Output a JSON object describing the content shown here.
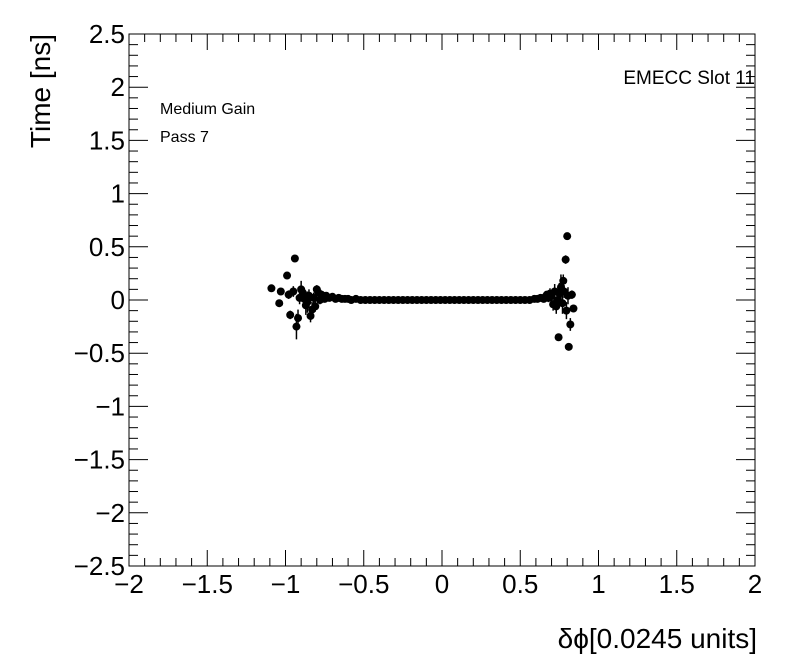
{
  "chart_data": {
    "type": "scatter",
    "title": "",
    "xlabel": "δϕ[0.0245 units]",
    "ylabel": "Time [ns]",
    "xlim": [
      -2,
      2
    ],
    "ylim": [
      -2.5,
      2.5
    ],
    "x_ticks": [
      -2,
      -1.5,
      -1,
      -0.5,
      0,
      0.5,
      1,
      1.5,
      2
    ],
    "x_tick_labels": [
      "−2",
      "−1.5",
      "−1",
      "−0.5",
      "0",
      "0.5",
      "1",
      "1.5",
      "2"
    ],
    "y_ticks": [
      -2.5,
      -2,
      -1.5,
      -1,
      -0.5,
      0,
      0.5,
      1,
      1.5,
      2,
      2.5
    ],
    "y_tick_labels": [
      "−2.5",
      "−2",
      "−1.5",
      "−1",
      "−0.5",
      "0",
      "0.5",
      "1",
      "1.5",
      "2",
      "2.5"
    ],
    "grid": false,
    "annotations": {
      "top_right": "EMECC Slot 11",
      "top_left_line1": "Medium Gain",
      "top_left_line2": "Pass 7"
    },
    "marker_color": "#000000",
    "series": [
      {
        "points": [
          [
            -1.09,
            0.11,
            0.02
          ],
          [
            -1.04,
            -0.03,
            0.03
          ],
          [
            -1.03,
            0.08,
            0.02
          ],
          [
            -0.99,
            0.23,
            0.03
          ],
          [
            -0.98,
            0.05,
            0.04
          ],
          [
            -0.97,
            -0.14,
            0.04
          ],
          [
            -0.95,
            0.08,
            0.05
          ],
          [
            -0.94,
            0.39,
            0.03
          ],
          [
            -0.93,
            -0.25,
            0.12
          ],
          [
            -0.92,
            -0.17,
            0.08
          ],
          [
            -0.91,
            0.02,
            0.06
          ],
          [
            -0.9,
            0.1,
            0.08
          ],
          [
            -0.89,
            0.07,
            0.05
          ],
          [
            -0.88,
            0.01,
            0.07
          ],
          [
            -0.87,
            -0.05,
            0.09
          ],
          [
            -0.86,
            -0.02,
            0.1
          ],
          [
            -0.85,
            0.04,
            0.06
          ],
          [
            -0.84,
            -0.15,
            0.06
          ],
          [
            -0.83,
            -0.09,
            0.07
          ],
          [
            -0.82,
            0.02,
            0.05
          ],
          [
            -0.81,
            -0.06,
            0.05
          ],
          [
            -0.8,
            0.1,
            0.04
          ],
          [
            -0.79,
            0.07,
            0.04
          ],
          [
            -0.78,
            0.0,
            0.04
          ],
          [
            -0.77,
            0.05,
            0.03
          ],
          [
            -0.76,
            0.03,
            0.03
          ],
          [
            -0.75,
            0.01,
            0.03
          ],
          [
            -0.74,
            0.04,
            0.02
          ],
          [
            -0.72,
            0.02,
            0.02
          ],
          [
            -0.7,
            0.03,
            0.02
          ],
          [
            -0.68,
            0.01,
            0.01
          ],
          [
            -0.66,
            0.02,
            0.01
          ],
          [
            -0.64,
            0.01,
            0.01
          ],
          [
            -0.62,
            0.01,
            0.01
          ],
          [
            -0.6,
            0.01,
            0.01
          ],
          [
            -0.58,
            0.0,
            0.01
          ],
          [
            -0.55,
            0.01,
            0.0
          ],
          [
            -0.52,
            0.0,
            0.0
          ],
          [
            -0.49,
            0.0,
            0.0
          ],
          [
            -0.46,
            0.0,
            0.0
          ],
          [
            -0.43,
            0.0,
            0.0
          ],
          [
            -0.4,
            0.0,
            0.0
          ],
          [
            -0.37,
            0.0,
            0.0
          ],
          [
            -0.34,
            0.0,
            0.0
          ],
          [
            -0.31,
            0.0,
            0.0
          ],
          [
            -0.28,
            0.0,
            0.0
          ],
          [
            -0.25,
            0.0,
            0.0
          ],
          [
            -0.22,
            0.0,
            0.0
          ],
          [
            -0.19,
            0.0,
            0.0
          ],
          [
            -0.16,
            0.0,
            0.0
          ],
          [
            -0.13,
            0.0,
            0.0
          ],
          [
            -0.1,
            0.0,
            0.0
          ],
          [
            -0.07,
            0.0,
            0.0
          ],
          [
            -0.04,
            0.0,
            0.0
          ],
          [
            -0.01,
            0.0,
            0.0
          ],
          [
            0.02,
            0.0,
            0.0
          ],
          [
            0.05,
            0.0,
            0.0
          ],
          [
            0.08,
            0.0,
            0.0
          ],
          [
            0.11,
            0.0,
            0.0
          ],
          [
            0.14,
            0.0,
            0.0
          ],
          [
            0.17,
            0.0,
            0.0
          ],
          [
            0.2,
            0.0,
            0.0
          ],
          [
            0.23,
            0.0,
            0.0
          ],
          [
            0.26,
            0.0,
            0.0
          ],
          [
            0.29,
            0.0,
            0.0
          ],
          [
            0.32,
            0.0,
            0.0
          ],
          [
            0.35,
            0.0,
            0.0
          ],
          [
            0.38,
            0.0,
            0.0
          ],
          [
            0.41,
            0.0,
            0.0
          ],
          [
            0.44,
            0.0,
            0.0
          ],
          [
            0.47,
            0.0,
            0.0
          ],
          [
            0.5,
            0.0,
            0.0
          ],
          [
            0.53,
            0.0,
            0.0
          ],
          [
            0.56,
            0.0,
            0.01
          ],
          [
            0.59,
            0.01,
            0.01
          ],
          [
            0.61,
            0.01,
            0.01
          ],
          [
            0.63,
            0.02,
            0.01
          ],
          [
            0.65,
            0.01,
            0.02
          ],
          [
            0.66,
            0.03,
            0.02
          ],
          [
            0.67,
            0.05,
            0.03
          ],
          [
            0.68,
            0.02,
            0.04
          ],
          [
            0.69,
            0.06,
            0.05
          ],
          [
            0.7,
            0.04,
            0.05
          ],
          [
            0.71,
            -0.04,
            0.06
          ],
          [
            0.72,
            0.08,
            0.07
          ],
          [
            0.73,
            -0.06,
            0.07
          ],
          [
            0.74,
            0.0,
            0.08
          ],
          [
            0.745,
            -0.35,
            0.03
          ],
          [
            0.75,
            0.06,
            0.1
          ],
          [
            0.76,
            0.12,
            0.12
          ],
          [
            0.77,
            -0.03,
            0.1
          ],
          [
            0.775,
            0.18,
            0.06
          ],
          [
            0.78,
            0.08,
            0.06
          ],
          [
            0.79,
            0.38,
            0.04
          ],
          [
            0.795,
            -0.1,
            0.08
          ],
          [
            0.8,
            0.6,
            0.02
          ],
          [
            0.805,
            0.04,
            0.08
          ],
          [
            0.81,
            -0.44,
            0.02
          ],
          [
            0.82,
            -0.23,
            0.06
          ],
          [
            0.83,
            0.05,
            0.04
          ],
          [
            0.84,
            -0.08,
            0.03
          ]
        ]
      }
    ]
  }
}
